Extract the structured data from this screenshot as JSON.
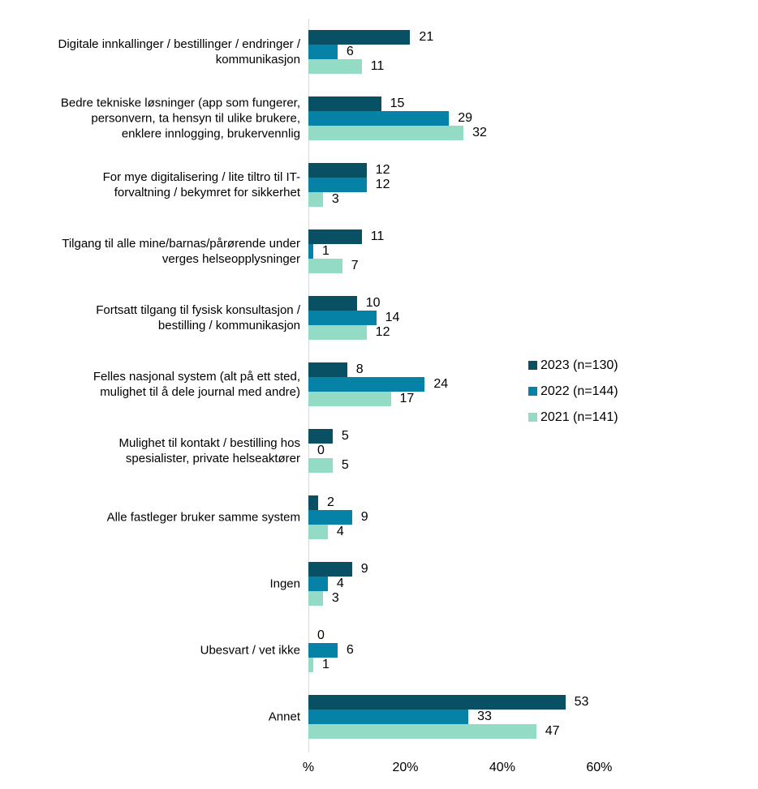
{
  "chart_data": {
    "type": "bar",
    "orientation": "horizontal",
    "title": "",
    "xlabel": "",
    "ylabel": "",
    "grid": false,
    "legend_position": "right",
    "value_labels": true,
    "axis_color": "#d9d9d9",
    "text_color": "#000000",
    "x_axis": {
      "max": 60,
      "ticks": [
        {
          "label": "%",
          "value": 0
        },
        {
          "label": "20%",
          "value": 20
        },
        {
          "label": "40%",
          "value": 40
        },
        {
          "label": "60%",
          "value": 60
        }
      ]
    },
    "categories": [
      "Digitale innkallinger / bestillinger / endringer /\nkommunikasjon",
      "Bedre tekniske løsninger (app som fungerer,\npersonvern, ta hensyn til ulike brukere,\nenklere innlogging, brukervennlig",
      "For mye digitalisering / lite tiltro til IT-\nforvaltning / bekymret for sikkerhet",
      "Tilgang til alle mine/barnas/pårørende under\nverges helseopplysninger",
      "Fortsatt tilgang til fysisk konsultasjon /\nbestilling / kommunikasjon",
      "Felles nasjonal system (alt på ett sted,\nmulighet til å dele journal med andre)",
      "Mulighet til kontakt / bestilling hos\nspesialister, private helseaktører",
      "Alle fastleger bruker samme system",
      "Ingen",
      "Ubesvart / vet ikke",
      "Annet"
    ],
    "series": [
      {
        "name": "2023 (n=130)",
        "color": "#0a5064",
        "values": [
          21,
          15,
          12,
          11,
          10,
          8,
          5,
          2,
          9,
          0,
          53
        ]
      },
      {
        "name": "2022 (n=144)",
        "color": "#0682a6",
        "values": [
          6,
          29,
          12,
          1,
          14,
          24,
          0,
          9,
          4,
          6,
          33
        ]
      },
      {
        "name": "2021 (n=141)",
        "color": "#93dbc5",
        "values": [
          11,
          32,
          3,
          7,
          12,
          17,
          5,
          4,
          3,
          1,
          47
        ]
      }
    ]
  }
}
